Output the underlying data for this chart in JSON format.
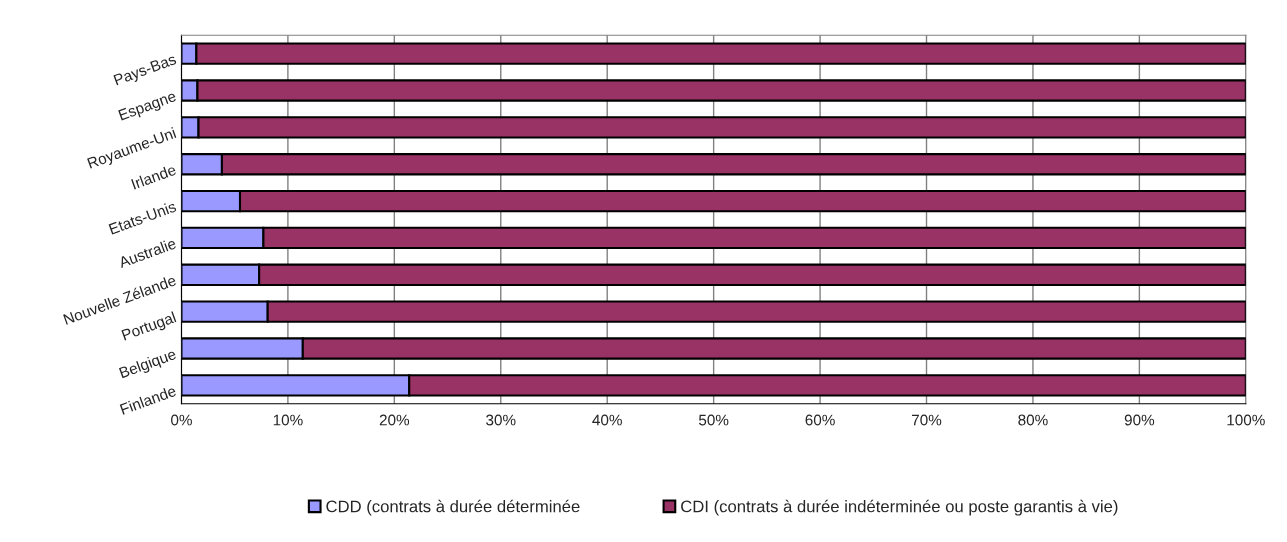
{
  "chart_data": {
    "type": "bar",
    "orientation": "horizontal",
    "stacked": true,
    "categories": [
      "Pays-Bas",
      "Espagne",
      "Royaume-Uni",
      "Irlande",
      "Etats-Unis",
      "Australie",
      "Nouvelle Zélande",
      "Portugal",
      "Belgique",
      "Finlande"
    ],
    "series": [
      {
        "name": "CDD (contrats à durée déterminée",
        "color": "#9999ff",
        "values": [
          1.4,
          1.5,
          1.6,
          3.8,
          5.5,
          7.7,
          7.3,
          8.1,
          11.4,
          21.4
        ]
      },
      {
        "name": "CDI (contrats à durée indéterminée ou poste garantis à vie)",
        "color": "#993366",
        "values": [
          98.6,
          98.5,
          98.4,
          96.2,
          94.5,
          92.3,
          92.7,
          91.9,
          88.6,
          78.6
        ]
      }
    ],
    "xlim": [
      0,
      100
    ],
    "xticks": [
      {
        "value": 0,
        "label": "0%"
      },
      {
        "value": 10,
        "label": "10%"
      },
      {
        "value": 20,
        "label": "20%"
      },
      {
        "value": 30,
        "label": "30%"
      },
      {
        "value": 40,
        "label": "40%"
      },
      {
        "value": 50,
        "label": "50%"
      },
      {
        "value": 60,
        "label": "60%"
      },
      {
        "value": 70,
        "label": "70%"
      },
      {
        "value": 80,
        "label": "80%"
      },
      {
        "value": 90,
        "label": "90%"
      },
      {
        "value": 100,
        "label": "100%"
      }
    ],
    "grid": "x",
    "legend": "bottom"
  }
}
